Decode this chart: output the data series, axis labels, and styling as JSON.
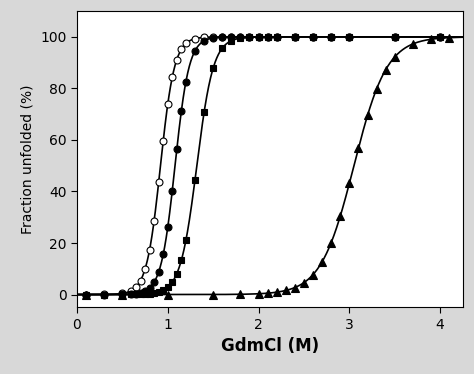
{
  "title": "",
  "xlabel": "GdmCl (M)",
  "ylabel": "Fraction unfolded (%)",
  "xlim": [
    0,
    4.25
  ],
  "ylim": [
    -5,
    110
  ],
  "yticks": [
    0,
    20,
    40,
    60,
    80,
    100
  ],
  "xticks": [
    0,
    1,
    2,
    3,
    4
  ],
  "series": [
    {
      "label": "open_circle",
      "midpoint": 0.92,
      "slope": 13.0,
      "marker": "o",
      "facecolor": "white",
      "edgecolor": "black",
      "markersize": 5,
      "data_x": [
        0.1,
        0.3,
        0.5,
        0.6,
        0.65,
        0.7,
        0.75,
        0.8,
        0.85,
        0.9,
        0.95,
        1.0,
        1.05,
        1.1,
        1.15,
        1.2,
        1.3,
        1.4,
        1.5,
        1.6,
        1.7,
        1.8,
        1.9,
        2.0,
        2.1,
        2.2,
        2.4,
        2.6,
        2.8,
        3.0,
        3.5,
        4.0
      ]
    },
    {
      "label": "filled_circle",
      "midpoint": 1.08,
      "slope": 13.0,
      "marker": "o",
      "facecolor": "black",
      "edgecolor": "black",
      "markersize": 5,
      "data_x": [
        0.1,
        0.3,
        0.5,
        0.6,
        0.65,
        0.7,
        0.75,
        0.8,
        0.85,
        0.9,
        0.95,
        1.0,
        1.05,
        1.1,
        1.15,
        1.2,
        1.3,
        1.4,
        1.5,
        1.6,
        1.7,
        1.8,
        1.9,
        2.0,
        2.1,
        2.2,
        2.4,
        2.6,
        2.8,
        3.0,
        3.5,
        4.0
      ]
    },
    {
      "label": "filled_square",
      "midpoint": 1.32,
      "slope": 11.0,
      "marker": "s",
      "facecolor": "black",
      "edgecolor": "black",
      "markersize": 5,
      "data_x": [
        0.1,
        0.3,
        0.5,
        0.6,
        0.65,
        0.7,
        0.75,
        0.8,
        0.85,
        0.9,
        0.95,
        1.0,
        1.05,
        1.1,
        1.15,
        1.2,
        1.3,
        1.4,
        1.5,
        1.6,
        1.7,
        1.8,
        1.9,
        2.0,
        2.1,
        2.2,
        2.4,
        2.6,
        2.8,
        3.0,
        3.5,
        4.0
      ]
    },
    {
      "label": "filled_triangle",
      "midpoint": 3.05,
      "slope": 5.5,
      "marker": "^",
      "facecolor": "black",
      "edgecolor": "black",
      "markersize": 6,
      "data_x": [
        0.1,
        0.5,
        1.0,
        1.5,
        1.8,
        2.0,
        2.1,
        2.2,
        2.3,
        2.4,
        2.5,
        2.6,
        2.7,
        2.8,
        2.9,
        3.0,
        3.1,
        3.2,
        3.3,
        3.4,
        3.5,
        3.7,
        3.9,
        4.1
      ]
    }
  ],
  "background_color": "#d8d8d8",
  "plot_bg_color": "#ffffff",
  "line_color": "black",
  "linewidth": 1.2,
  "xlabel_fontsize": 12,
  "ylabel_fontsize": 10,
  "tick_fontsize": 10
}
